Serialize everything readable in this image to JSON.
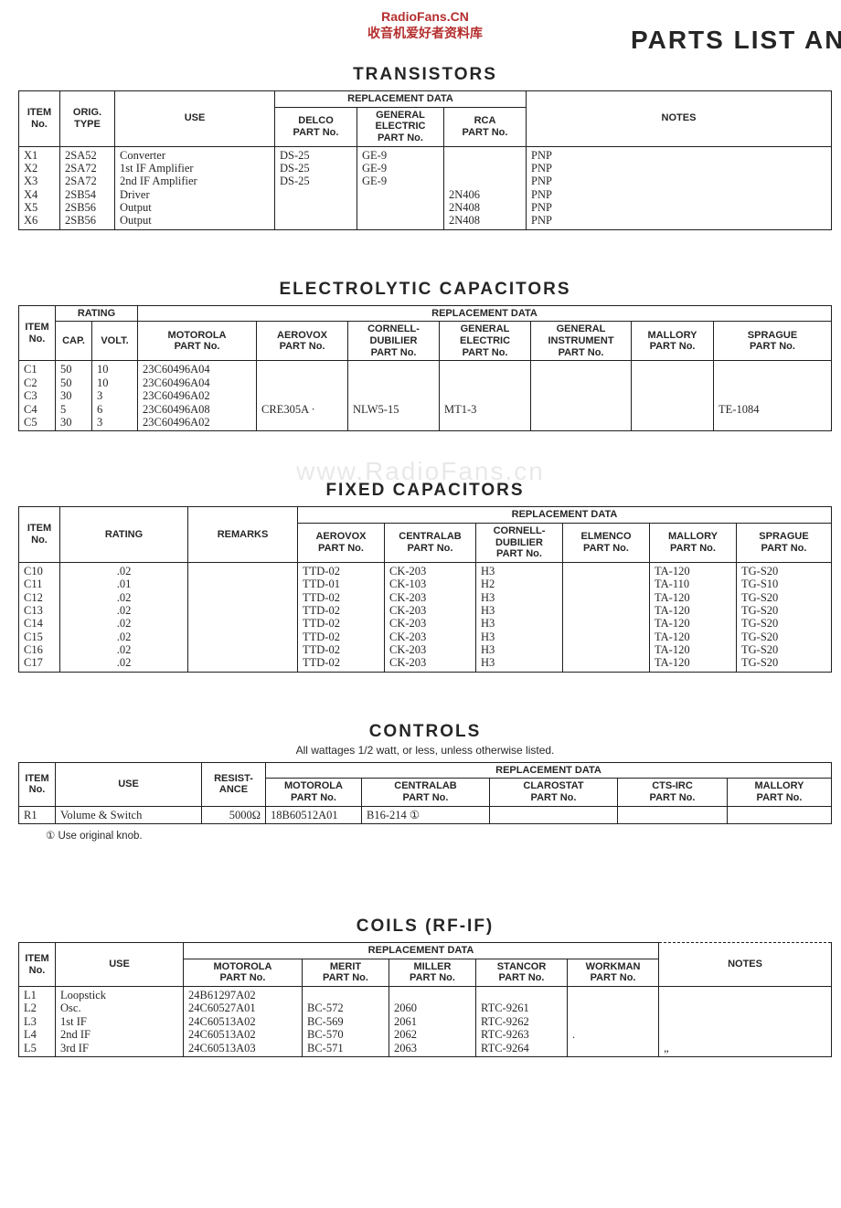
{
  "watermark": {
    "line1": "RadioFans.CN",
    "line2": "收音机爱好者资料库",
    "center": "www.RadioFans.cn"
  },
  "page_title_fragment": "PARTS LIST AN",
  "transistors": {
    "title": "TRANSISTORS",
    "headers": {
      "item": "ITEM\nNo.",
      "orig": "ORIG.\nTYPE",
      "use": "USE",
      "repl": "REPLACEMENT DATA",
      "delco": "DELCO\nPART No.",
      "ge": "GENERAL\nELECTRIC\nPART No.",
      "rca": "RCA\nPART No.",
      "notes": "NOTES"
    },
    "rows": [
      {
        "item": "X1",
        "orig": "2SA52",
        "use": "Converter",
        "delco": "DS-25",
        "ge": "GE-9",
        "rca": "",
        "notes": "PNP"
      },
      {
        "item": "X2",
        "orig": "2SA72",
        "use": "1st IF Amplifier",
        "delco": "DS-25",
        "ge": "GE-9",
        "rca": "",
        "notes": "PNP"
      },
      {
        "item": "X3",
        "orig": "2SA72",
        "use": "2nd IF Amplifier",
        "delco": "DS-25",
        "ge": "GE-9",
        "rca": "",
        "notes": "PNP"
      },
      {
        "item": "X4",
        "orig": "2SB54",
        "use": "Driver",
        "delco": "",
        "ge": "",
        "rca": "2N406",
        "notes": "PNP"
      },
      {
        "item": "X5",
        "orig": "2SB56",
        "use": "Output",
        "delco": "",
        "ge": "",
        "rca": "2N408",
        "notes": "PNP"
      },
      {
        "item": "X6",
        "orig": "2SB56",
        "use": "Output",
        "delco": "",
        "ge": "",
        "rca": "2N408",
        "notes": "PNP"
      }
    ]
  },
  "electrolytic": {
    "title": "ELECTROLYTIC CAPACITORS",
    "headers": {
      "item": "ITEM\nNo.",
      "rating": "RATING",
      "cap": "CAP.",
      "volt": "VOLT.",
      "repl": "REPLACEMENT DATA",
      "moto": "MOTOROLA\nPART No.",
      "aero": "AEROVOX\nPART No.",
      "cd": "CORNELL-\nDUBILIER\nPART No.",
      "ge": "GENERAL\nELECTRIC\nPART No.",
      "gi": "GENERAL\nINSTRUMENT\nPART No.",
      "mallory": "MALLORY\nPART No.",
      "sprague": "SPRAGUE\nPART No."
    },
    "rows": [
      {
        "item": "C1",
        "cap": "50",
        "volt": "10",
        "moto": "23C60496A04",
        "aero": "",
        "cd": "",
        "ge": "",
        "gi": "",
        "mallory": "",
        "sprague": ""
      },
      {
        "item": "C2",
        "cap": "50",
        "volt": "10",
        "moto": "23C60496A04",
        "aero": "",
        "cd": "",
        "ge": "",
        "gi": "",
        "mallory": "",
        "sprague": ""
      },
      {
        "item": "C3",
        "cap": "30",
        "volt": "3",
        "moto": "23C60496A02",
        "aero": "",
        "cd": "",
        "ge": "",
        "gi": "",
        "mallory": "",
        "sprague": ""
      },
      {
        "item": "C4",
        "cap": "5",
        "volt": "6",
        "moto": "23C60496A08",
        "aero": "CRE305A  ·",
        "cd": "NLW5-15",
        "ge": "MT1-3",
        "gi": "",
        "mallory": "",
        "sprague": "TE-1084"
      },
      {
        "item": "C5",
        "cap": "30",
        "volt": "3",
        "moto": "23C60496A02",
        "aero": "",
        "cd": "",
        "ge": "",
        "gi": "",
        "mallory": "",
        "sprague": ""
      }
    ]
  },
  "fixed": {
    "title": "FIXED CAPACITORS",
    "headers": {
      "item": "ITEM\nNo.",
      "rating": "RATING",
      "remarks": "REMARKS",
      "repl": "REPLACEMENT DATA",
      "aero": "AEROVOX\nPART No.",
      "centralab": "CENTRALAB\nPART No.",
      "cd": "CORNELL-\nDUBILIER\nPART No.",
      "elmenco": "ELMENCO\nPART No.",
      "mallory": "MALLORY\nPART No.",
      "sprague": "SPRAGUE\nPART No."
    },
    "rows": [
      {
        "item": "C10",
        "rating": ".02",
        "remarks": "",
        "aero": "TTD-02",
        "centralab": "CK-203",
        "cd": "H3",
        "elmenco": "",
        "mallory": "TA-120",
        "sprague": "TG-S20"
      },
      {
        "item": "C11",
        "rating": ".01",
        "remarks": "",
        "aero": "TTD-01",
        "centralab": "CK-103",
        "cd": "H2",
        "elmenco": "",
        "mallory": "TA-110",
        "sprague": "TG-S10"
      },
      {
        "item": "C12",
        "rating": ".02",
        "remarks": "",
        "aero": "TTD-02",
        "centralab": "CK-203",
        "cd": "H3",
        "elmenco": "",
        "mallory": "TA-120",
        "sprague": "TG-S20"
      },
      {
        "item": "C13",
        "rating": ".02",
        "remarks": "",
        "aero": "TTD-02",
        "centralab": "CK-203",
        "cd": "H3",
        "elmenco": "",
        "mallory": "TA-120",
        "sprague": "TG-S20"
      },
      {
        "item": "C14",
        "rating": ".02",
        "remarks": "",
        "aero": "TTD-02",
        "centralab": "CK-203",
        "cd": "H3",
        "elmenco": "",
        "mallory": "TA-120",
        "sprague": "TG-S20"
      },
      {
        "item": "C15",
        "rating": ".02",
        "remarks": "",
        "aero": "TTD-02",
        "centralab": "CK-203",
        "cd": "H3",
        "elmenco": "",
        "mallory": "TA-120",
        "sprague": "TG-S20"
      },
      {
        "item": "C16",
        "rating": ".02",
        "remarks": "",
        "aero": "TTD-02",
        "centralab": "CK-203",
        "cd": "H3",
        "elmenco": "",
        "mallory": "TA-120",
        "sprague": "TG-S20"
      },
      {
        "item": "C17",
        "rating": ".02",
        "remarks": "",
        "aero": "TTD-02",
        "centralab": "CK-203",
        "cd": "H3",
        "elmenco": "",
        "mallory": "TA-120",
        "sprague": "TG-S20"
      }
    ]
  },
  "controls": {
    "title": "CONTROLS",
    "subtitle": "All wattages 1/2 watt, or less, unless otherwise listed.",
    "headers": {
      "item": "ITEM\nNo.",
      "use": "USE",
      "resist": "RESIST-\nANCE",
      "repl": "REPLACEMENT DATA",
      "moto": "MOTOROLA\nPART No.",
      "centralab": "CENTRALAB\nPART No.",
      "clarostat": "CLAROSTAT\nPART No.",
      "cts": "CTS-IRC\nPART No.",
      "mallory": "MALLORY\nPART No."
    },
    "rows": [
      {
        "item": "R1",
        "use": "Volume & Switch",
        "resist": "5000Ω",
        "moto": "18B60512A01",
        "centralab": "B16-214 ①",
        "clarostat": "",
        "cts": "",
        "mallory": ""
      }
    ],
    "footnote": "①  Use original knob."
  },
  "coils": {
    "title": "COILS (RF-IF)",
    "headers": {
      "item": "ITEM\nNo.",
      "use": "USE",
      "repl": "REPLACEMENT DATA",
      "moto": "MOTOROLA\nPART No.",
      "merit": "MERIT\nPART No.",
      "miller": "MILLER\nPART No.",
      "stancor": "STANCOR\nPART No.",
      "workman": "WORKMAN\nPART No.",
      "notes": "NOTES"
    },
    "rows": [
      {
        "item": "L1",
        "use": "Loopstick",
        "moto": "24B61297A02",
        "merit": "",
        "miller": "",
        "stancor": "",
        "workman": "",
        "notes": ""
      },
      {
        "item": "L2",
        "use": "Osc.",
        "moto": "24C60527A01",
        "merit": "BC-572",
        "miller": "2060",
        "stancor": "RTC-9261",
        "workman": "",
        "notes": ""
      },
      {
        "item": "L3",
        "use": "1st IF",
        "moto": "24C60513A02",
        "merit": "BC-569",
        "miller": "2061",
        "stancor": "RTC-9262",
        "workman": "",
        "notes": ""
      },
      {
        "item": "L4",
        "use": "2nd IF",
        "moto": "24C60513A02",
        "merit": "BC-570",
        "miller": "2062",
        "stancor": "RTC-9263",
        "workman": ".",
        "notes": ""
      },
      {
        "item": "L5",
        "use": "3rd IF",
        "moto": "24C60513A03",
        "merit": "BC-571",
        "miller": "2063",
        "stancor": "RTC-9264",
        "workman": "",
        "notes": "„"
      }
    ]
  }
}
